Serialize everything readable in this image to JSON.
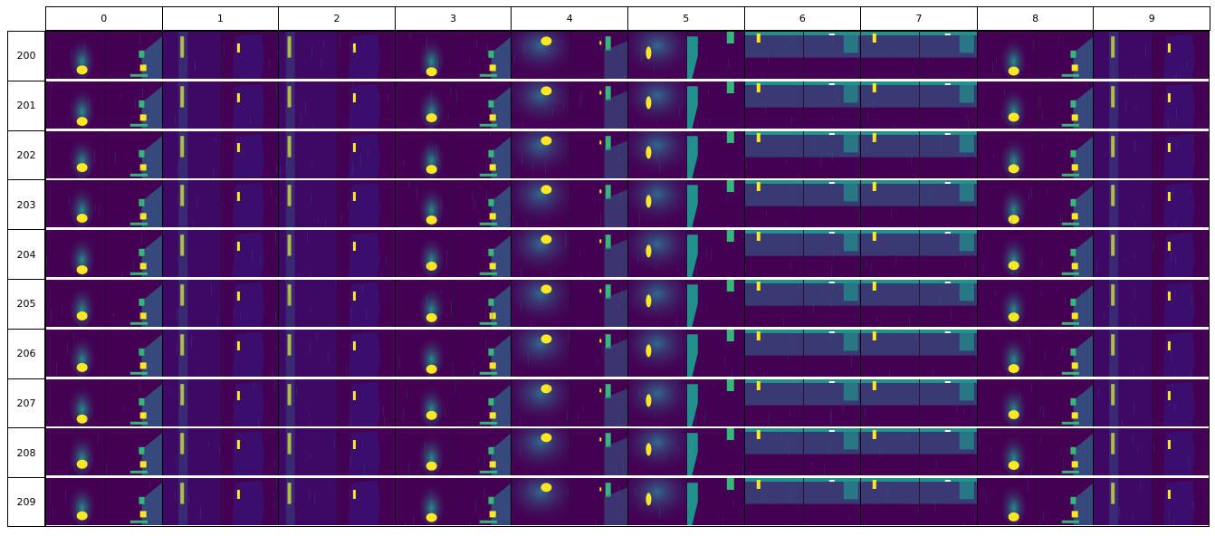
{
  "grid": {
    "column_labels": [
      "0",
      "1",
      "2",
      "3",
      "4",
      "5",
      "6",
      "7",
      "8",
      "9"
    ],
    "row_labels": [
      "200",
      "201",
      "202",
      "203",
      "204",
      "205",
      "206",
      "207",
      "208",
      "209"
    ]
  },
  "colors": {
    "background": "#440154",
    "deep": "#3b0f70",
    "mid_blue": "#31688e",
    "teal": "#21918c",
    "green": "#35b779",
    "bright_yellow": "#fde725",
    "header_border": "#000000"
  }
}
